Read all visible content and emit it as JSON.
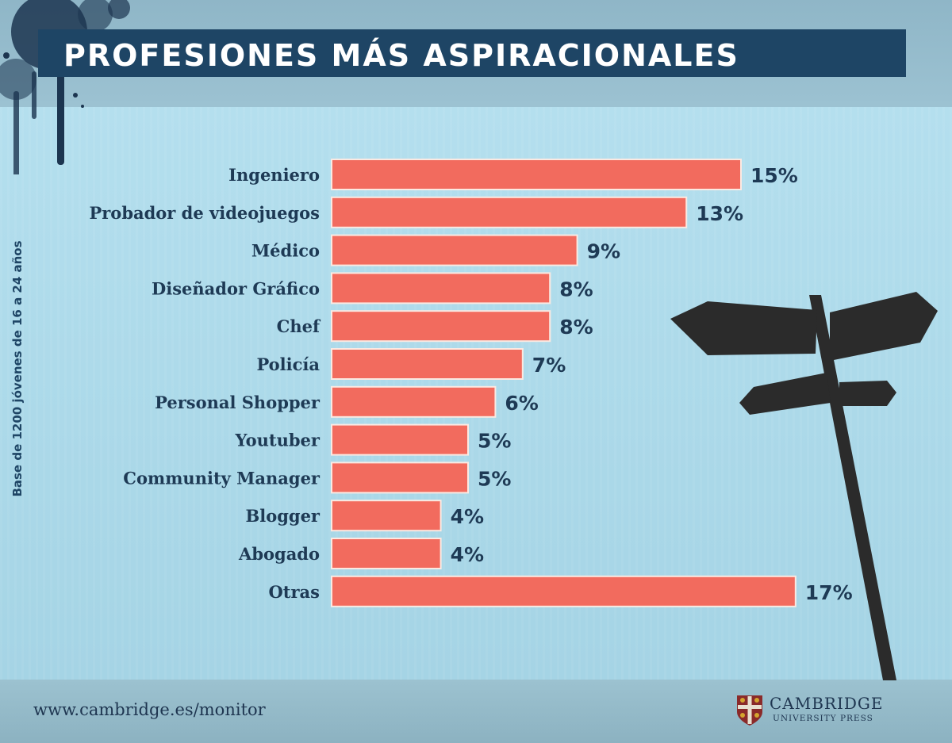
{
  "title": "PROFESIONES MÁS ASPIRACIONALES",
  "side_note": "Base de 1200 jóvenes de 16 a 24 años",
  "footer": {
    "url": "www.cambridge.es/monitor",
    "logo_name": "CAMBRIDGE",
    "logo_sub": "UNIVERSITY PRESS"
  },
  "colors": {
    "bar": "#f26b5e",
    "label": "#1e3a55",
    "title_bg": "#1e4565",
    "background": "#a9d6e6"
  },
  "chart_data": {
    "type": "bar",
    "orientation": "horizontal",
    "title": "PROFESIONES MÁS ASPIRACIONALES",
    "categories": [
      "Ingeniero",
      "Probador de videojuegos",
      "Médico",
      "Diseñador Gráfico",
      "Chef",
      "Policía",
      "Personal Shopper",
      "Youtuber",
      "Community Manager",
      "Blogger",
      "Abogado",
      "Otras"
    ],
    "values": [
      15,
      13,
      9,
      8,
      8,
      7,
      6,
      5,
      5,
      4,
      4,
      17
    ],
    "value_labels": [
      "15%",
      "13%",
      "9%",
      "8%",
      "8%",
      "7%",
      "6%",
      "5%",
      "5%",
      "4%",
      "4%",
      "17%"
    ],
    "unit": "%",
    "xlabel": "",
    "ylabel": "",
    "grid": false,
    "legend": "none"
  }
}
